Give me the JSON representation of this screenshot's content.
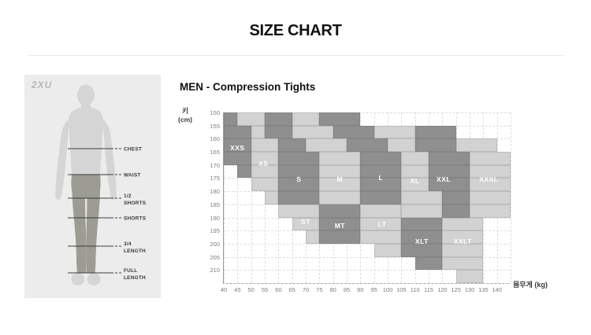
{
  "page_title": "SIZE CHART",
  "brand": "2XU",
  "figure": {
    "colors": {
      "body": "#d5d5d5",
      "tights": "#9c9c93",
      "line": "#3c3c3c",
      "label": "#3a3a3a"
    },
    "measurements": [
      {
        "lines": [
          "CHEST"
        ],
        "y": 94
      },
      {
        "lines": [
          "WAIST"
        ],
        "y": 127
      },
      {
        "lines": [
          "1/2",
          "SHORTS"
        ],
        "y": 157
      },
      {
        "lines": [
          "SHORTS"
        ],
        "y": 182
      },
      {
        "lines": [
          "3/4",
          "LENGTH"
        ],
        "y": 218
      },
      {
        "lines": [
          "FULL",
          "LENGTH"
        ],
        "y": 252
      }
    ]
  },
  "chart_data": {
    "type": "heatmap",
    "title": "MEN - Compression Tights",
    "x_axis": {
      "label": "몸무게 (kg)",
      "ticks": [
        40,
        45,
        50,
        55,
        60,
        65,
        70,
        75,
        80,
        85,
        90,
        95,
        100,
        105,
        110,
        115,
        120,
        125,
        130,
        135,
        140
      ]
    },
    "y_axis": {
      "label_lines": [
        "키",
        "(cm)"
      ],
      "ticks": [
        150,
        155,
        160,
        165,
        170,
        175,
        180,
        185,
        190,
        195,
        200,
        205,
        210
      ]
    },
    "x_range": [
      40,
      145
    ],
    "y_range": [
      150,
      215
    ],
    "grid": true,
    "colors": {
      "dark": "#8f8f8f",
      "light": "#d2d2d2"
    },
    "legend_note": "rows = [height_cm_row_start, weight_from_kg, weight_to_kg]",
    "sizes": [
      {
        "name": "XXS",
        "shade": "dark",
        "label_kg": 45,
        "label_cm": 163.5,
        "rows": [
          [
            150,
            40,
            45
          ],
          [
            155,
            40,
            50
          ],
          [
            160,
            40,
            50
          ],
          [
            165,
            40,
            50
          ],
          [
            170,
            45,
            50
          ]
        ]
      },
      {
        "name": "XS",
        "shade": "light",
        "label_kg": 54.5,
        "label_cm": 169.5,
        "rows": [
          [
            150,
            45,
            55
          ],
          [
            155,
            50,
            55
          ],
          [
            160,
            50,
            60
          ],
          [
            165,
            50,
            60
          ],
          [
            170,
            50,
            60
          ],
          [
            175,
            50,
            60
          ],
          [
            180,
            55,
            60
          ]
        ]
      },
      {
        "name": "S",
        "shade": "dark",
        "label_kg": 67.5,
        "label_cm": 175.5,
        "rows": [
          [
            150,
            55,
            65
          ],
          [
            155,
            55,
            65
          ],
          [
            160,
            60,
            70
          ],
          [
            165,
            60,
            75
          ],
          [
            170,
            60,
            75
          ],
          [
            175,
            60,
            75
          ],
          [
            180,
            60,
            75
          ]
        ]
      },
      {
        "name": "M",
        "shade": "light",
        "label_kg": 82.5,
        "label_cm": 175.5,
        "rows": [
          [
            150,
            65,
            75
          ],
          [
            155,
            65,
            80
          ],
          [
            160,
            70,
            85
          ],
          [
            165,
            75,
            90
          ],
          [
            170,
            75,
            90
          ],
          [
            175,
            75,
            90
          ],
          [
            180,
            75,
            90
          ]
        ]
      },
      {
        "name": "L",
        "shade": "dark",
        "label_kg": 97.5,
        "label_cm": 175,
        "rows": [
          [
            150,
            75,
            90
          ],
          [
            155,
            80,
            95
          ],
          [
            160,
            85,
            100
          ],
          [
            165,
            90,
            105
          ],
          [
            170,
            90,
            105
          ],
          [
            175,
            90,
            105
          ],
          [
            180,
            90,
            105
          ]
        ]
      },
      {
        "name": "XL",
        "shade": "light",
        "label_kg": 110,
        "label_cm": 176,
        "rows": [
          [
            155,
            95,
            110
          ],
          [
            160,
            100,
            110
          ],
          [
            165,
            105,
            115
          ],
          [
            170,
            105,
            115
          ],
          [
            175,
            105,
            115
          ],
          [
            180,
            105,
            120
          ],
          [
            185,
            105,
            120
          ]
        ]
      },
      {
        "name": "XXL",
        "shade": "dark",
        "label_kg": 120.5,
        "label_cm": 175.5,
        "rows": [
          [
            155,
            110,
            125
          ],
          [
            160,
            110,
            125
          ],
          [
            165,
            115,
            130
          ],
          [
            170,
            115,
            130
          ],
          [
            175,
            115,
            130
          ],
          [
            180,
            120,
            130
          ],
          [
            185,
            120,
            130
          ]
        ]
      },
      {
        "name": "XXXL",
        "shade": "light",
        "label_kg": 137,
        "label_cm": 175.5,
        "rows": [
          [
            160,
            125,
            140
          ],
          [
            165,
            130,
            145
          ],
          [
            170,
            130,
            145
          ],
          [
            175,
            130,
            145
          ],
          [
            180,
            130,
            145
          ],
          [
            185,
            130,
            145
          ]
        ]
      },
      {
        "name": "ST",
        "shade": "light",
        "label_kg": 70,
        "label_cm": 191.5,
        "rows": [
          [
            185,
            60,
            75
          ],
          [
            190,
            65,
            75
          ],
          [
            195,
            70,
            75
          ]
        ]
      },
      {
        "name": "MT",
        "shade": "dark",
        "label_kg": 82.5,
        "label_cm": 193,
        "rows": [
          [
            185,
            75,
            90
          ],
          [
            190,
            75,
            90
          ],
          [
            195,
            75,
            90
          ]
        ]
      },
      {
        "name": "LT",
        "shade": "light",
        "label_kg": 98,
        "label_cm": 192.5,
        "rows": [
          [
            185,
            90,
            105
          ],
          [
            190,
            90,
            105
          ],
          [
            195,
            90,
            105
          ],
          [
            200,
            95,
            105
          ]
        ]
      },
      {
        "name": "XLT",
        "shade": "dark",
        "label_kg": 112.5,
        "label_cm": 199,
        "rows": [
          [
            190,
            105,
            120
          ],
          [
            195,
            105,
            120
          ],
          [
            200,
            105,
            120
          ],
          [
            205,
            110,
            120
          ]
        ]
      },
      {
        "name": "XXLT",
        "shade": "light",
        "label_kg": 127.5,
        "label_cm": 199,
        "rows": [
          [
            190,
            120,
            135
          ],
          [
            195,
            120,
            135
          ],
          [
            200,
            120,
            135
          ],
          [
            205,
            120,
            135
          ],
          [
            210,
            125,
            135
          ]
        ]
      }
    ]
  }
}
